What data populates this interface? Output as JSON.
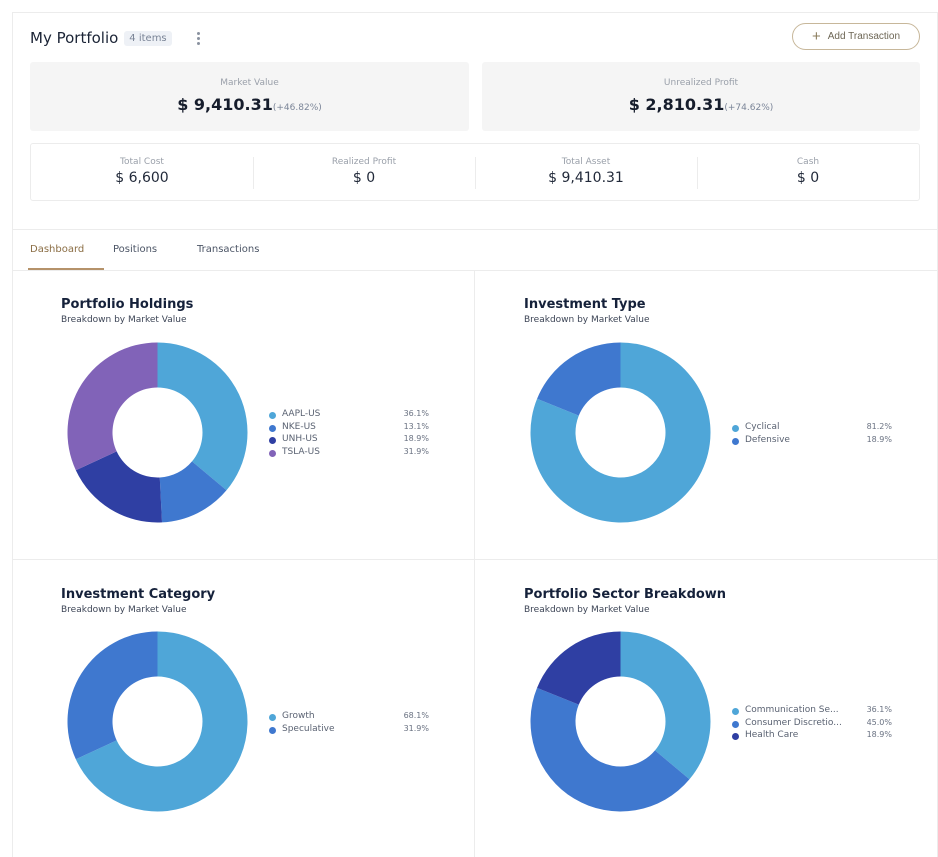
{
  "header": {
    "title": "My Portfolio",
    "count_badge": "4 items",
    "add_button_label": "Add Transaction"
  },
  "summary": {
    "market_value": {
      "label": "Market Value",
      "value": "$ 9,410.31",
      "change": "(+46.82%)"
    },
    "unrealized_profit": {
      "label": "Unrealized Profit",
      "value": "$ 2,810.31",
      "change": "(+74.62%)"
    }
  },
  "stats": [
    {
      "label": "Total Cost",
      "value": "$ 6,600"
    },
    {
      "label": "Realized Profit",
      "value": "$ 0"
    },
    {
      "label": "Total Asset",
      "value": "$ 9,410.31"
    },
    {
      "label": "Cash",
      "value": "$ 0"
    }
  ],
  "tabs": [
    {
      "label": "Dashboard",
      "active": true
    },
    {
      "label": "Positions",
      "active": false
    },
    {
      "label": "Transactions",
      "active": false
    }
  ],
  "chart_data": [
    {
      "type": "pie",
      "title": "Portfolio Holdings",
      "subtitle": "Breakdown by Market Value",
      "series": [
        {
          "name": "AAPL-US",
          "value": 36.1,
          "label": "36.1%",
          "color": "#4fa6d8"
        },
        {
          "name": "NKE-US",
          "value": 13.1,
          "label": "13.1%",
          "color": "#3f78cf"
        },
        {
          "name": "UNH-US",
          "value": 18.9,
          "label": "18.9%",
          "color": "#2f3fa3"
        },
        {
          "name": "TSLA-US",
          "value": 31.9,
          "label": "31.9%",
          "color": "#8163b8"
        }
      ]
    },
    {
      "type": "pie",
      "title": "Investment Type",
      "subtitle": "Breakdown by Market Value",
      "series": [
        {
          "name": "Cyclical",
          "value": 81.2,
          "label": "81.2%",
          "color": "#4fa6d8"
        },
        {
          "name": "Defensive",
          "value": 18.9,
          "label": "18.9%",
          "color": "#3f78cf"
        }
      ]
    },
    {
      "type": "pie",
      "title": "Investment Category",
      "subtitle": "Breakdown by Market Value",
      "series": [
        {
          "name": "Growth",
          "value": 68.1,
          "label": "68.1%",
          "color": "#4fa6d8"
        },
        {
          "name": "Speculative",
          "value": 31.9,
          "label": "31.9%",
          "color": "#3f78cf"
        }
      ]
    },
    {
      "type": "pie",
      "title": "Portfolio Sector Breakdown",
      "subtitle": "Breakdown by Market Value",
      "series": [
        {
          "name": "Communication Se...",
          "value": 36.1,
          "label": "36.1%",
          "color": "#4fa6d8"
        },
        {
          "name": "Consumer Discretio...",
          "value": 45.0,
          "label": "45.0%",
          "color": "#3f78cf"
        },
        {
          "name": "Health Care",
          "value": 18.9,
          "label": "18.9%",
          "color": "#2f3fa3"
        }
      ]
    }
  ]
}
